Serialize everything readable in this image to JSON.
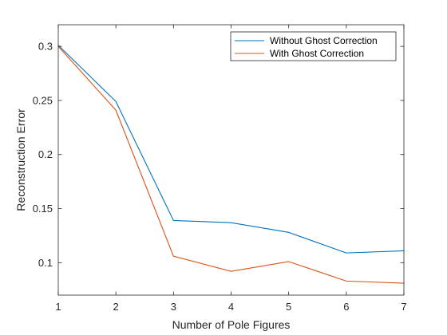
{
  "chart_data": {
    "type": "line",
    "title": "",
    "xlabel": "Number of Pole Figures",
    "ylabel": "Reconstruction Error",
    "x": [
      1,
      2,
      3,
      4,
      5,
      6,
      7
    ],
    "xlim": [
      1,
      7
    ],
    "ylim": [
      0.07,
      0.32
    ],
    "xticks": [
      1,
      2,
      3,
      4,
      5,
      6,
      7
    ],
    "yticks": [
      0.1,
      0.15,
      0.2,
      0.25,
      0.3
    ],
    "ytick_labels": [
      "0.1",
      "0.15",
      "0.2",
      "0.25",
      "0.3"
    ],
    "grid": false,
    "legend_position": "top-right",
    "series": [
      {
        "name": "Without Ghost Correction",
        "color": "#0072BD",
        "values": [
          0.301,
          0.249,
          0.139,
          0.137,
          0.128,
          0.109,
          0.111
        ]
      },
      {
        "name": "With Ghost Correction",
        "color": "#D95319",
        "values": [
          0.3,
          0.241,
          0.106,
          0.092,
          0.101,
          0.083,
          0.081
        ]
      }
    ]
  }
}
